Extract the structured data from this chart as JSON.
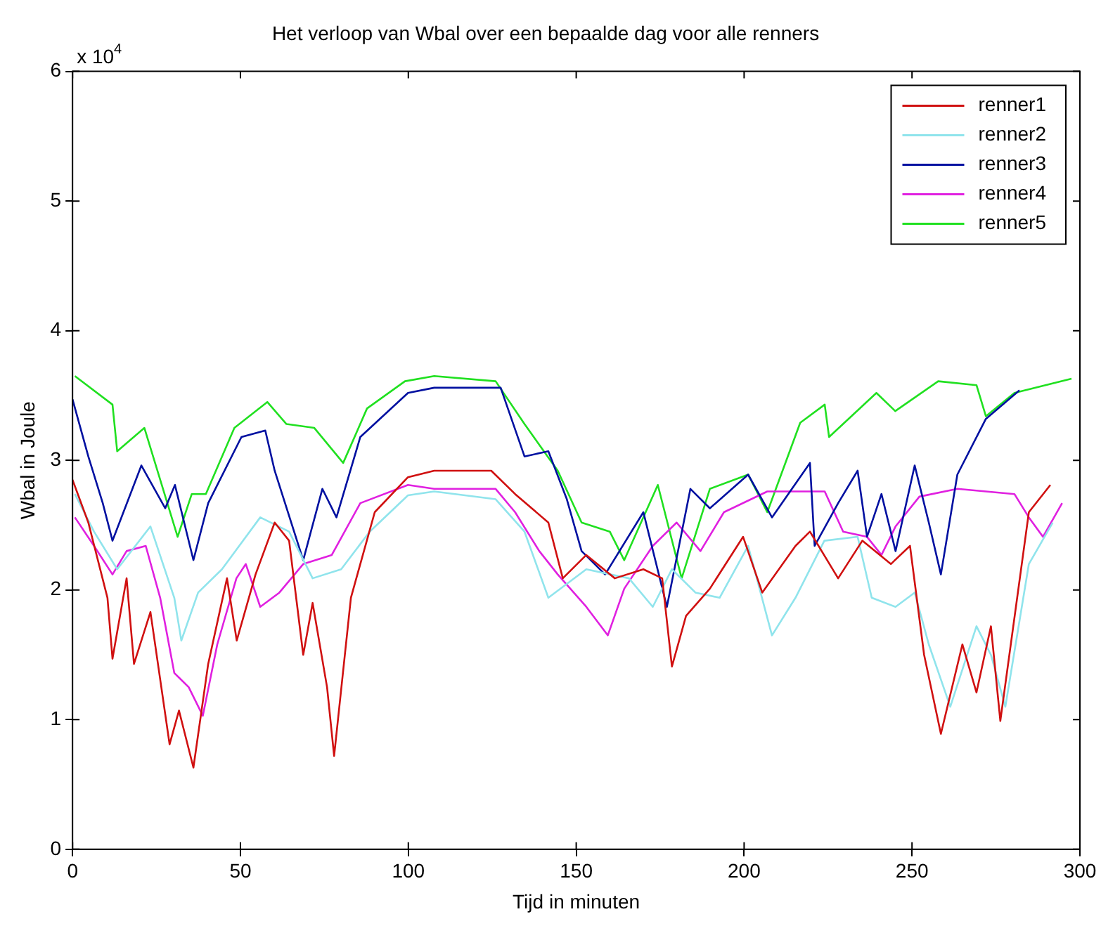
{
  "chart_data": {
    "type": "line",
    "title": "Het verloop van Wbal over een bepaalde dag voor alle renners",
    "xlabel": "Tijd in minuten",
    "ylabel": "Wbal in Joule",
    "annotations": [
      "x 10$^{4}$"
    ],
    "xlim": [
      0,
      300
    ],
    "xticks": [
      0,
      50,
      100,
      150,
      200,
      250,
      300
    ],
    "ylim": [
      0,
      6
    ],
    "yticks": [
      0,
      1,
      2,
      3,
      4,
      5,
      6
    ],
    "grid": false,
    "legend": "top right",
    "marker": "none",
    "line_style": "solid",
    "series": [
      {
        "name": "renner1",
        "color": "#d01010",
        "x": [
          0,
          4.7,
          10.4,
          11.9,
          16.1,
          18.3,
          23.2,
          28.9,
          31.7,
          36,
          40.4,
          46,
          48.9,
          54.5,
          60.2,
          64.5,
          68.7,
          71.5,
          75.8,
          77.9,
          82.9,
          90,
          99.9,
          107.7,
          124.7,
          131.8,
          141.7,
          146,
          153,
          161.5,
          170,
          175.6,
          178.5,
          182.7,
          189.8,
          199.7,
          205.4,
          215.3,
          219.6,
          228,
          235.2,
          243.7,
          249.4,
          253.6,
          258.6,
          265,
          269.2,
          273.5,
          276.3,
          284.8,
          291.2
        ],
        "values": [
          2.85,
          2.52,
          1.94,
          1.47,
          2.09,
          1.43,
          1.83,
          0.81,
          1.07,
          0.63,
          1.43,
          2.09,
          1.61,
          2.12,
          2.52,
          2.38,
          1.5,
          1.9,
          1.25,
          0.72,
          1.94,
          2.6,
          2.87,
          2.92,
          2.92,
          2.74,
          2.52,
          2.09,
          2.27,
          2.09,
          2.16,
          2.09,
          1.41,
          1.8,
          2.01,
          2.41,
          1.98,
          2.34,
          2.45,
          2.09,
          2.38,
          2.2,
          2.34,
          1.5,
          0.89,
          1.58,
          1.21,
          1.72,
          0.99,
          2.6,
          2.81
        ]
      },
      {
        "name": "renner2",
        "color": "#90e4ec",
        "x": [
          0.7,
          6.4,
          13.3,
          23.2,
          30.3,
          32.4,
          37.4,
          44.5,
          55.9,
          64.5,
          71.5,
          80,
          88.5,
          99.9,
          107.7,
          126,
          134.6,
          141.7,
          153,
          165.7,
          172.8,
          178.5,
          185.5,
          192.7,
          201.2,
          208.3,
          215.3,
          223.9,
          233.8,
          238,
          245.1,
          250.8,
          255,
          261.4,
          269.2,
          273.5,
          277.8,
          284.8,
          291.9
        ],
        "values": [
          2.74,
          2.45,
          2.16,
          2.49,
          1.94,
          1.61,
          1.98,
          2.16,
          2.56,
          2.45,
          2.09,
          2.16,
          2.45,
          2.73,
          2.76,
          2.7,
          2.45,
          1.94,
          2.16,
          2.09,
          1.87,
          2.16,
          1.98,
          1.94,
          2.34,
          1.65,
          1.94,
          2.38,
          2.41,
          1.94,
          1.87,
          1.98,
          1.58,
          1.1,
          1.72,
          1.5,
          1.1,
          2.2,
          2.52
        ]
      },
      {
        "name": "renner3",
        "color": "#0010a0",
        "x": [
          0,
          4.7,
          9,
          11.9,
          20.5,
          27.6,
          30.5,
          36,
          40.4,
          50.3,
          57.4,
          60.2,
          68.7,
          74.4,
          78.6,
          85.7,
          99.9,
          107.7,
          127.5,
          134.6,
          141.7,
          147.2,
          151.6,
          158.6,
          170,
          177,
          184,
          189.8,
          201.2,
          208.3,
          219.6,
          221,
          228,
          233.8,
          236.6,
          240.9,
          245.1,
          250.8,
          255,
          258.6,
          263.5,
          272,
          282
        ],
        "values": [
          3.47,
          3.03,
          2.67,
          2.38,
          2.96,
          2.63,
          2.81,
          2.23,
          2.67,
          3.18,
          3.23,
          2.92,
          2.23,
          2.78,
          2.56,
          3.18,
          3.52,
          3.56,
          3.56,
          3.03,
          3.07,
          2.7,
          2.3,
          2.12,
          2.6,
          1.87,
          2.78,
          2.63,
          2.89,
          2.56,
          2.98,
          2.34,
          2.67,
          2.92,
          2.41,
          2.74,
          2.3,
          2.96,
          2.52,
          2.12,
          2.89,
          3.32,
          3.54
        ]
      },
      {
        "name": "renner4",
        "color": "#e020e0",
        "x": [
          0.7,
          6.4,
          11.9,
          16.1,
          21.8,
          26.1,
          30.3,
          34.6,
          38.8,
          43.1,
          48.8,
          51.6,
          55.9,
          61.6,
          68.7,
          77.2,
          85.7,
          99.9,
          107.7,
          126,
          131.8,
          139,
          144.5,
          153,
          159.4,
          164.3,
          172.8,
          179.9,
          187,
          194,
          206.9,
          224,
          229.5,
          236.6,
          240.9,
          245.1,
          252.2,
          263.5,
          280.5,
          284.8,
          289,
          294.7
        ],
        "values": [
          2.56,
          2.34,
          2.12,
          2.3,
          2.34,
          1.94,
          1.36,
          1.25,
          1.03,
          1.58,
          2.09,
          2.2,
          1.87,
          1.98,
          2.2,
          2.27,
          2.67,
          2.81,
          2.78,
          2.78,
          2.6,
          2.3,
          2.12,
          1.87,
          1.65,
          2.01,
          2.34,
          2.52,
          2.3,
          2.6,
          2.76,
          2.76,
          2.45,
          2.41,
          2.27,
          2.49,
          2.72,
          2.78,
          2.74,
          2.56,
          2.41,
          2.67
        ]
      },
      {
        "name": "renner5",
        "color": "#20e020",
        "x": [
          0.7,
          11.9,
          13.3,
          21.4,
          31.3,
          35.5,
          39.7,
          48.2,
          58,
          63.7,
          72,
          80.6,
          87.7,
          99,
          107.7,
          126,
          134.6,
          144.5,
          151.6,
          160,
          164.3,
          174.3,
          181.4,
          189.8,
          201.2,
          206.9,
          216.7,
          224,
          225.3,
          239.4,
          245,
          257.8,
          269.2,
          272,
          280.5,
          297.5
        ],
        "values": [
          3.65,
          3.43,
          3.07,
          3.25,
          2.41,
          2.74,
          2.74,
          3.25,
          3.45,
          3.28,
          3.25,
          2.98,
          3.4,
          3.61,
          3.65,
          3.61,
          3.28,
          2.92,
          2.52,
          2.45,
          2.23,
          2.81,
          2.09,
          2.78,
          2.89,
          2.6,
          3.29,
          3.43,
          3.18,
          3.52,
          3.38,
          3.61,
          3.58,
          3.34,
          3.52,
          3.63
        ]
      }
    ]
  }
}
